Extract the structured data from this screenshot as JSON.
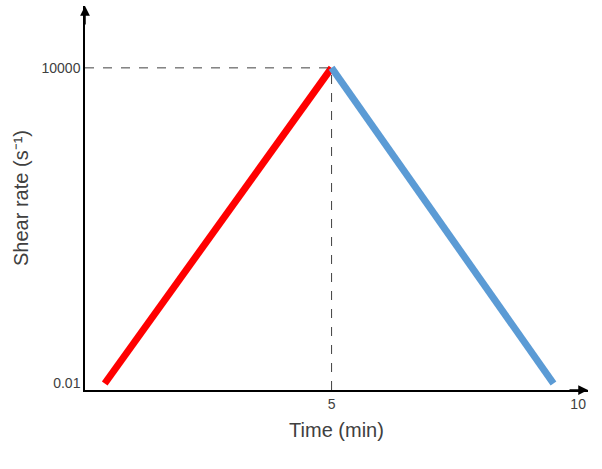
{
  "chart_data": {
    "type": "line",
    "x_label": "Time (min)",
    "y_label": "Shear rate (s⁻¹)",
    "log": "y",
    "grid": false,
    "series": [
      {
        "color": "#ff0000",
        "x": [
          0.4,
          5
        ],
        "values": [
          0.01,
          10000
        ]
      },
      {
        "color": "#5b9bd5",
        "x": [
          5,
          9.5
        ],
        "values": [
          10000,
          0.01
        ]
      }
    ],
    "xlim": [
      0,
      10.2
    ],
    "xticks": [
      5,
      10
    ],
    "ylim": [
      0.0075,
      150000
    ],
    "yticks": [
      0.01,
      10000
    ]
  }
}
